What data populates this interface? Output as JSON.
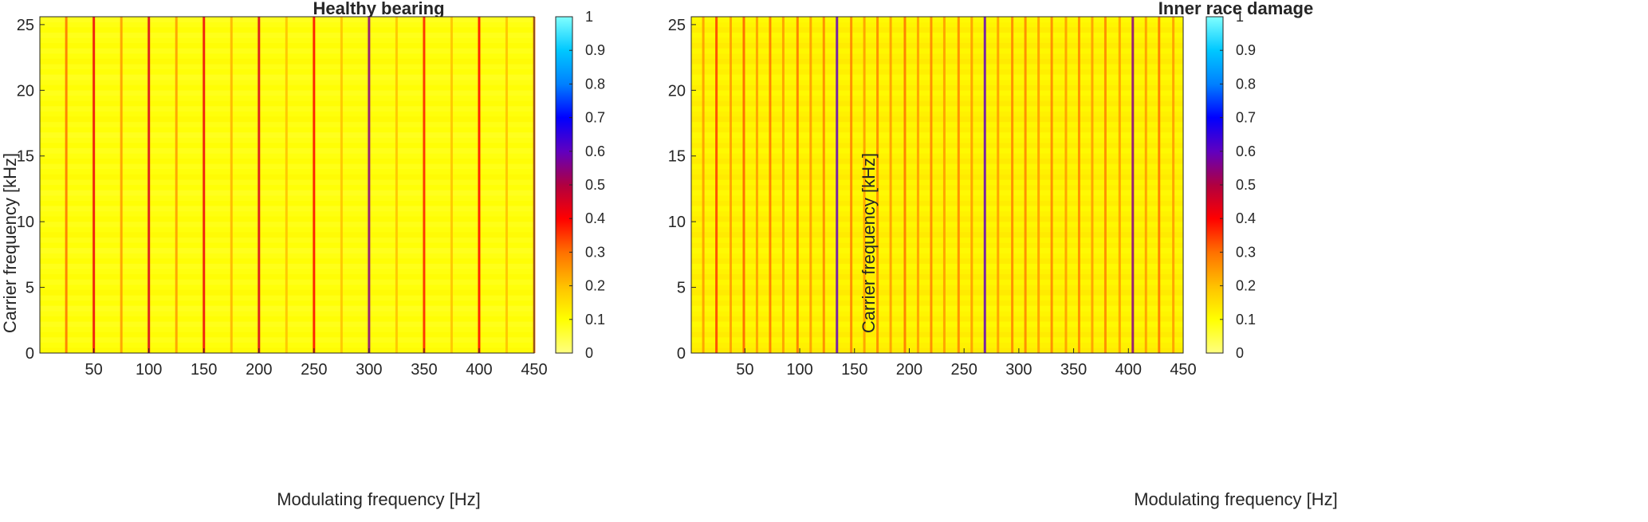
{
  "chart_data": [
    {
      "type": "heatmap",
      "title": "Healthy bearing",
      "xlabel": "Modulating frequency [Hz]",
      "ylabel": "Carrier frequency [kHz]",
      "xlim": [
        1,
        450
      ],
      "ylim": [
        0,
        25.6
      ],
      "xticks": [
        50,
        100,
        150,
        200,
        250,
        300,
        350,
        400,
        450
      ],
      "yticks": [
        0,
        5,
        10,
        15,
        20,
        25
      ],
      "colorbar": {
        "min": 0,
        "max": 1,
        "ticks": [
          "0",
          "0.1",
          "0.2",
          "0.3",
          "0.4",
          "0.5",
          "0.6",
          "0.7",
          "0.8",
          "0.9",
          "1"
        ]
      },
      "background_level": 0.09,
      "prominent_modulating_frequencies_hz": [
        {
          "f": 25,
          "level": 0.3
        },
        {
          "f": 50,
          "level": 0.42
        },
        {
          "f": 75,
          "level": 0.25
        },
        {
          "f": 100,
          "level": 0.45
        },
        {
          "f": 125,
          "level": 0.25
        },
        {
          "f": 150,
          "level": 0.42
        },
        {
          "f": 175,
          "level": 0.22
        },
        {
          "f": 200,
          "level": 0.45
        },
        {
          "f": 225,
          "level": 0.2
        },
        {
          "f": 250,
          "level": 0.4
        },
        {
          "f": 275,
          "level": 0.2
        },
        {
          "f": 300,
          "level": 0.55
        },
        {
          "f": 325,
          "level": 0.2
        },
        {
          "f": 350,
          "level": 0.38
        },
        {
          "f": 375,
          "level": 0.2
        },
        {
          "f": 400,
          "level": 0.4
        },
        {
          "f": 425,
          "level": 0.2
        },
        {
          "f": 450,
          "level": 0.3
        }
      ]
    },
    {
      "type": "heatmap",
      "title": "Inner race damage",
      "xlabel": "Modulating frequency [Hz]",
      "ylabel": "Carrier frequency [kHz]",
      "xlim": [
        1,
        450
      ],
      "ylim": [
        0,
        25.6
      ],
      "xticks": [
        50,
        100,
        150,
        200,
        250,
        300,
        350,
        400,
        450
      ],
      "yticks": [
        0,
        5,
        10,
        15,
        20,
        25
      ],
      "colorbar": {
        "min": 0,
        "max": 1,
        "ticks": [
          "0",
          "0.1",
          "0.2",
          "0.3",
          "0.4",
          "0.5",
          "0.6",
          "0.7",
          "0.8",
          "0.9",
          "1"
        ]
      },
      "background_level": 0.12,
      "prominent_modulating_frequencies_hz": [
        {
          "f": 12,
          "level": 0.25
        },
        {
          "f": 24,
          "level": 0.35
        },
        {
          "f": 37,
          "level": 0.25
        },
        {
          "f": 49,
          "level": 0.32
        },
        {
          "f": 61,
          "level": 0.25
        },
        {
          "f": 73,
          "level": 0.3
        },
        {
          "f": 85,
          "level": 0.25
        },
        {
          "f": 98,
          "level": 0.3
        },
        {
          "f": 110,
          "level": 0.25
        },
        {
          "f": 122,
          "level": 0.28
        },
        {
          "f": 134,
          "level": 0.6
        },
        {
          "f": 147,
          "level": 0.28
        },
        {
          "f": 159,
          "level": 0.25
        },
        {
          "f": 171,
          "level": 0.28
        },
        {
          "f": 183,
          "level": 0.25
        },
        {
          "f": 196,
          "level": 0.3
        },
        {
          "f": 208,
          "level": 0.25
        },
        {
          "f": 220,
          "level": 0.28
        },
        {
          "f": 232,
          "level": 0.25
        },
        {
          "f": 245,
          "level": 0.28
        },
        {
          "f": 257,
          "level": 0.25
        },
        {
          "f": 269,
          "level": 0.6
        },
        {
          "f": 281,
          "level": 0.25
        },
        {
          "f": 294,
          "level": 0.28
        },
        {
          "f": 306,
          "level": 0.28
        },
        {
          "f": 318,
          "level": 0.25
        },
        {
          "f": 330,
          "level": 0.28
        },
        {
          "f": 343,
          "level": 0.25
        },
        {
          "f": 355,
          "level": 0.28
        },
        {
          "f": 367,
          "level": 0.25
        },
        {
          "f": 379,
          "level": 0.28
        },
        {
          "f": 392,
          "level": 0.25
        },
        {
          "f": 404,
          "level": 0.55
        },
        {
          "f": 416,
          "level": 0.25
        },
        {
          "f": 428,
          "level": 0.3
        },
        {
          "f": 441,
          "level": 0.25
        }
      ]
    }
  ]
}
